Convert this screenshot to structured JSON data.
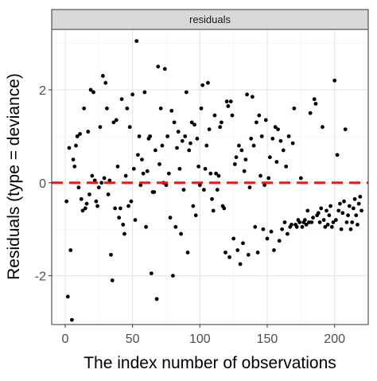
{
  "chart_data": {
    "type": "scatter",
    "facet_label": "residuals",
    "xlabel": "The index number of observations",
    "ylabel": "Residuals (type = deviance)",
    "xlim": [
      -10,
      225
    ],
    "ylim": [
      -3.05,
      3.3
    ],
    "x_ticks": [
      0,
      50,
      100,
      150,
      200
    ],
    "y_ticks": [
      -2,
      0,
      2
    ],
    "reference_line": {
      "y": 0,
      "style": "dashed",
      "color": "#e41a1c"
    },
    "grid": true,
    "colors": {
      "points": "#000000",
      "grid_major": "#e6e6e6",
      "grid_minor": "#f2f2f2",
      "panel_border": "#333333",
      "strip_fill": "#d9d9d9"
    },
    "points": [
      [
        1,
        -0.4
      ],
      [
        2,
        -2.45
      ],
      [
        3,
        0.75
      ],
      [
        4,
        -1.45
      ],
      [
        5,
        -2.95
      ],
      [
        6,
        0.5
      ],
      [
        7,
        0.35
      ],
      [
        8,
        0.8
      ],
      [
        9,
        1.0
      ],
      [
        10,
        -0.1
      ],
      [
        11,
        1.05
      ],
      [
        12,
        -0.35
      ],
      [
        13,
        -0.6
      ],
      [
        14,
        1.6
      ],
      [
        15,
        -0.55
      ],
      [
        16,
        -0.45
      ],
      [
        17,
        1.1
      ],
      [
        18,
        -0.25
      ],
      [
        19,
        2.0
      ],
      [
        20,
        0.15
      ],
      [
        21,
        1.95
      ],
      [
        22,
        0.05
      ],
      [
        23,
        -0.4
      ],
      [
        24,
        -0.5
      ],
      [
        25,
        -0.1
      ],
      [
        26,
        1.2
      ],
      [
        27,
        0.0
      ],
      [
        28,
        2.3
      ],
      [
        29,
        0.1
      ],
      [
        30,
        2.15
      ],
      [
        31,
        1.6
      ],
      [
        32,
        -0.25
      ],
      [
        33,
        0.05
      ],
      [
        34,
        -1.55
      ],
      [
        35,
        -2.1
      ],
      [
        36,
        1.3
      ],
      [
        37,
        -0.55
      ],
      [
        38,
        1.35
      ],
      [
        39,
        0.35
      ],
      [
        40,
        -0.75
      ],
      [
        41,
        -0.55
      ],
      [
        42,
        1.8
      ],
      [
        43,
        -0.9
      ],
      [
        44,
        -1.1
      ],
      [
        45,
        0.15
      ],
      [
        46,
        1.6
      ],
      [
        47,
        -0.5
      ],
      [
        48,
        1.2
      ],
      [
        49,
        -0.4
      ],
      [
        50,
        1.9
      ],
      [
        51,
        0.3
      ],
      [
        52,
        -0.8
      ],
      [
        53,
        3.05
      ],
      [
        54,
        0.6
      ],
      [
        55,
        1.0
      ],
      [
        56,
        -0.05
      ],
      [
        57,
        0.5
      ],
      [
        58,
        0.2
      ],
      [
        59,
        1.95
      ],
      [
        60,
        -0.95
      ],
      [
        61,
        0.25
      ],
      [
        62,
        0.95
      ],
      [
        63,
        1.0
      ],
      [
        64,
        -1.95
      ],
      [
        65,
        -0.2
      ],
      [
        66,
        -0.2
      ],
      [
        67,
        0.7
      ],
      [
        68,
        -2.5
      ],
      [
        69,
        2.5
      ],
      [
        70,
        0.4
      ],
      [
        71,
        1.6
      ],
      [
        72,
        0.8
      ],
      [
        73,
        0.0
      ],
      [
        74,
        2.45
      ],
      [
        75,
        -0.05
      ],
      [
        76,
        1.0
      ],
      [
        77,
        0.2
      ],
      [
        78,
        -0.75
      ],
      [
        79,
        1.55
      ],
      [
        80,
        -2.0
      ],
      [
        81,
        1.3
      ],
      [
        82,
        -0.95
      ],
      [
        83,
        0.75
      ],
      [
        84,
        1.1
      ],
      [
        85,
        0.3
      ],
      [
        86,
        -1.1
      ],
      [
        87,
        0.9
      ],
      [
        88,
        -0.15
      ],
      [
        89,
        1.0
      ],
      [
        90,
        1.95
      ],
      [
        91,
        -1.5
      ],
      [
        92,
        0.7
      ],
      [
        93,
        0.85
      ],
      [
        94,
        1.3
      ],
      [
        95,
        -0.5
      ],
      [
        96,
        1.25
      ],
      [
        97,
        -0.7
      ],
      [
        98,
        0.95
      ],
      [
        99,
        0.35
      ],
      [
        100,
        -0.05
      ],
      [
        101,
        1.6
      ],
      [
        102,
        2.1
      ],
      [
        103,
        -0.15
      ],
      [
        104,
        0.3
      ],
      [
        105,
        0.8
      ],
      [
        106,
        2.15
      ],
      [
        107,
        1.15
      ],
      [
        108,
        0.2
      ],
      [
        109,
        -0.35
      ],
      [
        110,
        -0.6
      ],
      [
        111,
        1.45
      ],
      [
        112,
        0.2
      ],
      [
        113,
        -0.15
      ],
      [
        114,
        0.15
      ],
      [
        115,
        1.2
      ],
      [
        116,
        1.3
      ],
      [
        117,
        -0.5
      ],
      [
        118,
        -0.55
      ],
      [
        119,
        -1.5
      ],
      [
        120,
        1.75
      ],
      [
        121,
        1.65
      ],
      [
        122,
        -1.6
      ],
      [
        123,
        1.75
      ],
      [
        124,
        1.45
      ],
      [
        125,
        -1.2
      ],
      [
        126,
        0.4
      ],
      [
        127,
        0.55
      ],
      [
        128,
        -1.45
      ],
      [
        129,
        0.8
      ],
      [
        130,
        -1.75
      ],
      [
        131,
        0.7
      ],
      [
        132,
        -1.3
      ],
      [
        133,
        0.25
      ],
      [
        134,
        0.5
      ],
      [
        135,
        1.9
      ],
      [
        136,
        -1.55
      ],
      [
        137,
        -0.1
      ],
      [
        138,
        0.95
      ],
      [
        139,
        1.85
      ],
      [
        140,
        0.8
      ],
      [
        141,
        -0.95
      ],
      [
        142,
        1.3
      ],
      [
        143,
        -1.5
      ],
      [
        144,
        1.45
      ],
      [
        145,
        0.15
      ],
      [
        146,
        1.0
      ],
      [
        147,
        -1.0
      ],
      [
        148,
        -0.05
      ],
      [
        149,
        1.35
      ],
      [
        150,
        -1.2
      ],
      [
        151,
        0.1
      ],
      [
        152,
        0.55
      ],
      [
        153,
        -1.05
      ],
      [
        154,
        0.95
      ],
      [
        155,
        -1.45
      ],
      [
        156,
        1.2
      ],
      [
        157,
        0.45
      ],
      [
        158,
        1.15
      ],
      [
        159,
        -1.25
      ],
      [
        160,
        0.9
      ],
      [
        161,
        -1.0
      ],
      [
        162,
        0.7
      ],
      [
        163,
        -0.85
      ],
      [
        164,
        0.35
      ],
      [
        165,
        -1.1
      ],
      [
        166,
        1.0
      ],
      [
        167,
        -0.95
      ],
      [
        168,
        -0.9
      ],
      [
        169,
        0.85
      ],
      [
        170,
        1.6
      ],
      [
        171,
        -0.9
      ],
      [
        172,
        -0.95
      ],
      [
        173,
        -0.8
      ],
      [
        174,
        -0.85
      ],
      [
        175,
        0.1
      ],
      [
        176,
        -0.95
      ],
      [
        177,
        -0.85
      ],
      [
        178,
        -0.8
      ],
      [
        179,
        -0.9
      ],
      [
        180,
        -0.6
      ],
      [
        181,
        -0.85
      ],
      [
        182,
        1.5
      ],
      [
        183,
        -0.85
      ],
      [
        184,
        -0.75
      ],
      [
        185,
        1.8
      ],
      [
        186,
        1.7
      ],
      [
        187,
        -0.7
      ],
      [
        188,
        -0.65
      ],
      [
        189,
        -0.85
      ],
      [
        190,
        -0.55
      ],
      [
        191,
        1.2
      ],
      [
        192,
        -0.8
      ],
      [
        193,
        -0.95
      ],
      [
        194,
        -0.6
      ],
      [
        195,
        -0.9
      ],
      [
        196,
        -0.7
      ],
      [
        197,
        -0.5
      ],
      [
        198,
        -0.95
      ],
      [
        199,
        -0.85
      ],
      [
        200,
        2.2
      ],
      [
        201,
        -0.8
      ],
      [
        202,
        0.6
      ],
      [
        203,
        -0.6
      ],
      [
        204,
        -0.45
      ],
      [
        205,
        -1.0
      ],
      [
        206,
        -0.65
      ],
      [
        207,
        -0.4
      ],
      [
        208,
        1.15
      ],
      [
        209,
        -0.85
      ],
      [
        210,
        -0.7
      ],
      [
        211,
        -0.5
      ],
      [
        212,
        -1.0
      ],
      [
        213,
        -0.85
      ],
      [
        214,
        -0.55
      ],
      [
        215,
        -0.35
      ],
      [
        216,
        -0.7
      ],
      [
        217,
        -0.9
      ],
      [
        218,
        -0.45
      ],
      [
        219,
        -0.3
      ],
      [
        220,
        -0.6
      ]
    ]
  }
}
